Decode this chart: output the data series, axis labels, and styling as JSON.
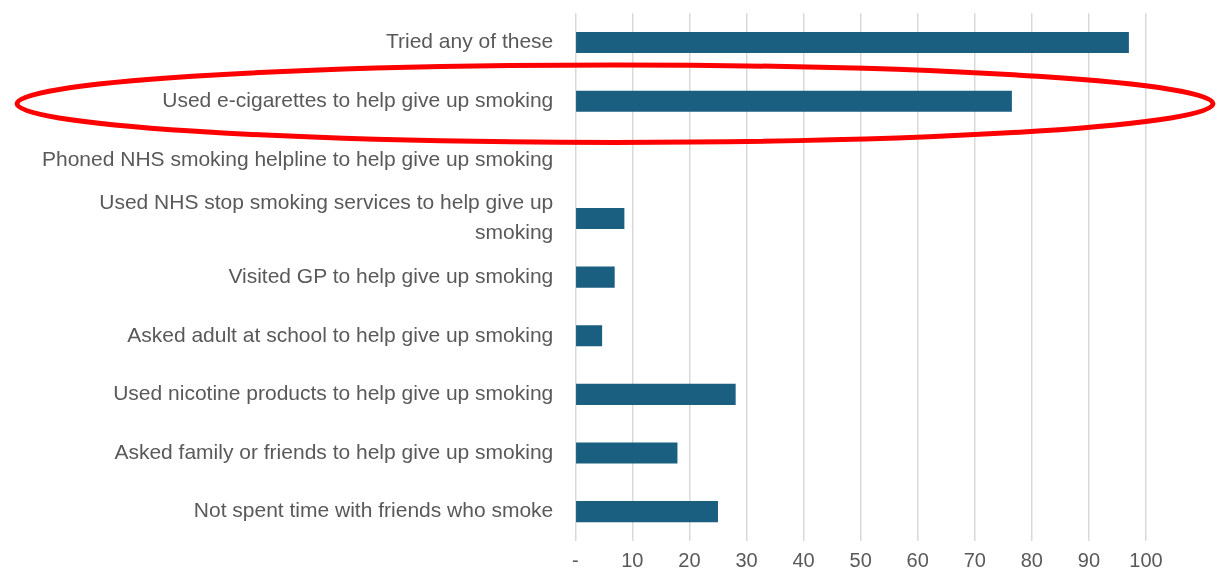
{
  "chart_data": {
    "type": "bar",
    "orientation": "horizontal",
    "categories": [
      "Tried any of these",
      "Used e-cigarettes to help give up smoking",
      "Phoned NHS smoking helpline to help give up smoking",
      "Used NHS stop smoking services to help give up smoking",
      "Visited GP to help give up smoking",
      "Asked adult at school to help give up smoking",
      "Used nicotine products to help give up smoking",
      "Asked family or friends to help give up smoking",
      "Not spent time with friends who smoke"
    ],
    "values": [
      97,
      76.5,
      0,
      8.6,
      6.9,
      4.7,
      28.1,
      17.9,
      25
    ],
    "color": "#1a5e80",
    "xlim": [
      0,
      100
    ],
    "xticks": [
      {
        "value": 0,
        "label": "-"
      },
      10,
      20,
      30,
      40,
      50,
      60,
      70,
      80,
      90,
      100
    ],
    "grid": "x",
    "legend": false
  }
}
